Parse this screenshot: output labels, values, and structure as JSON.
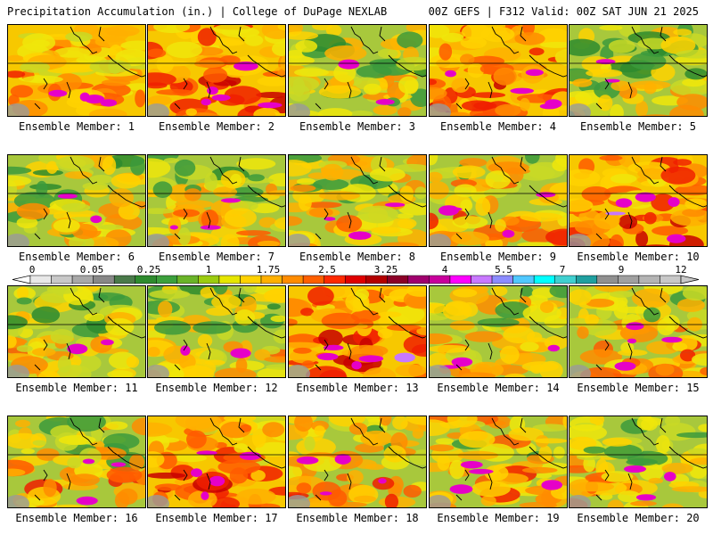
{
  "header": {
    "left_title": "Precipitation Accumulation (in.) | College of DuPage NEXLAB",
    "right_title": "00Z GEFS | F312 Valid: 00Z SAT JUN 21 2025"
  },
  "member_prefix": "Ensemble Member:",
  "members": [
    {
      "number": "1",
      "intensity": 0.65
    },
    {
      "number": "2",
      "intensity": 0.8
    },
    {
      "number": "3",
      "intensity": 0.35
    },
    {
      "number": "4",
      "intensity": 0.8
    },
    {
      "number": "5",
      "intensity": 0.3
    },
    {
      "number": "6",
      "intensity": 0.35
    },
    {
      "number": "7",
      "intensity": 0.45
    },
    {
      "number": "8",
      "intensity": 0.55
    },
    {
      "number": "9",
      "intensity": 0.6
    },
    {
      "number": "10",
      "intensity": 0.85
    },
    {
      "number": "11",
      "intensity": 0.4
    },
    {
      "number": "12",
      "intensity": 0.4
    },
    {
      "number": "13",
      "intensity": 0.9
    },
    {
      "number": "14",
      "intensity": 0.45
    },
    {
      "number": "15",
      "intensity": 0.6
    },
    {
      "number": "16",
      "intensity": 0.55
    },
    {
      "number": "17",
      "intensity": 0.75
    },
    {
      "number": "18",
      "intensity": 0.6
    },
    {
      "number": "19",
      "intensity": 0.6
    },
    {
      "number": "20",
      "intensity": 0.5
    }
  ],
  "colorbar": {
    "tick_labels": [
      "0",
      "0.05",
      "0.25",
      "1",
      "1.75",
      "2.5",
      "3.25",
      "4",
      "5.5",
      "7",
      "9",
      "12"
    ],
    "colors": [
      "#e8e8e8",
      "#c8c8c8",
      "#a8a8a8",
      "#888888",
      "#4a7a4a",
      "#2e8b2e",
      "#3ca03c",
      "#6ab428",
      "#9ccc10",
      "#e6e600",
      "#ffd200",
      "#ffb000",
      "#ff8c00",
      "#ff6000",
      "#ff2a00",
      "#e00000",
      "#b40000",
      "#8c0028",
      "#a0006e",
      "#c8009c",
      "#ff00ff",
      "#c878ff",
      "#8c8cff",
      "#50c8ff",
      "#00ffff",
      "#40d0d0",
      "#20a0a0",
      "#909090",
      "#a0a0a0",
      "#b4b4b4",
      "#c8c8c8"
    ]
  }
}
